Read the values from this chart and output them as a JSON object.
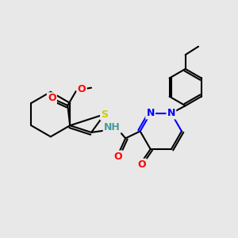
{
  "bg_color": "#e8e8e8",
  "bond_color": "#000000",
  "atom_colors": {
    "O": "#ff0000",
    "N": "#0000ff",
    "S": "#cccc00",
    "H": "#4a9a9a",
    "C": "#000000"
  },
  "figsize": [
    3.0,
    3.0
  ],
  "dpi": 100
}
